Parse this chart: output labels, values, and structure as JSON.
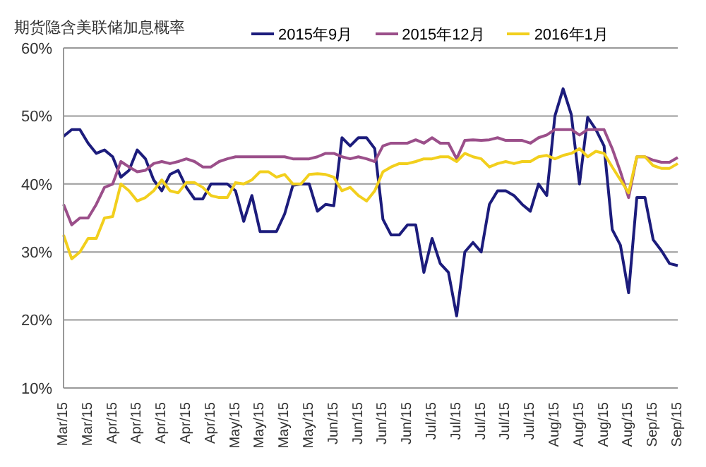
{
  "chart_data": {
    "type": "line",
    "title": "期货隐含美联储加息概率",
    "categories": [
      "Mar/15",
      null,
      null,
      "Mar/15",
      null,
      null,
      "Apr/15",
      null,
      null,
      "Apr/15",
      null,
      null,
      "Apr/15",
      null,
      null,
      "Apr/15",
      null,
      null,
      "Apr/15",
      null,
      null,
      "May/15",
      null,
      null,
      "May/15",
      null,
      null,
      "May/15",
      null,
      null,
      "May/15",
      null,
      null,
      "Jun/15",
      null,
      null,
      "Jun/15",
      null,
      null,
      "Jun/15",
      null,
      null,
      "Jun/15",
      null,
      null,
      "Jul/15",
      null,
      null,
      "Jul/15",
      null,
      null,
      "Jul/15",
      null,
      null,
      "Jul/15",
      null,
      null,
      "Jul/15",
      null,
      null,
      "Aug/15",
      null,
      null,
      "Aug/15",
      null,
      null,
      "Aug/15",
      null,
      null,
      "Aug/15",
      null,
      null,
      "Sep/15",
      null,
      null,
      "Sep/15"
    ],
    "series": [
      {
        "name": "2015年9月",
        "color": "#1c1c7c",
        "values": [
          47,
          48,
          48,
          46,
          44.5,
          45,
          44,
          41,
          42,
          45,
          43.7,
          40.6,
          39,
          41.4,
          42,
          39.5,
          37.8,
          37.8,
          40,
          40,
          40,
          39,
          34.5,
          38.3,
          33,
          33,
          33,
          35.6,
          39.8,
          40,
          40,
          36,
          37,
          36.8,
          46.8,
          45.6,
          46.8,
          46.8,
          45.2,
          34.8,
          32.5,
          32.5,
          34,
          34,
          27,
          32,
          28.3,
          27,
          20.6,
          30,
          31.4,
          30,
          37,
          39,
          39,
          38.3,
          37,
          36,
          40,
          38.3,
          50,
          54,
          50.2,
          40,
          49.8,
          48,
          45.6,
          33.3,
          31,
          24,
          38,
          38,
          31.8,
          30.2,
          28.3,
          28
        ]
      },
      {
        "name": "2015年12月",
        "color": "#9b4f8a",
        "values": [
          37,
          34,
          35,
          35,
          37,
          39.5,
          40,
          43.3,
          42.5,
          41.8,
          42,
          43,
          43.3,
          43,
          43.3,
          43.7,
          43.3,
          42.5,
          42.5,
          43.3,
          43.7,
          44,
          44,
          44,
          44,
          44,
          44,
          44,
          43.7,
          43.7,
          43.7,
          44,
          44.5,
          44.5,
          44,
          43.7,
          44,
          43.7,
          43.3,
          45.6,
          46,
          46,
          46,
          46.5,
          46,
          46.8,
          46,
          46,
          43.7,
          46.4,
          46.5,
          46.4,
          46.5,
          46.8,
          46.4,
          46.4,
          46.4,
          46,
          46.8,
          47.2,
          48,
          48,
          48,
          47.2,
          48,
          48,
          48,
          45.2,
          41.8,
          38,
          44,
          44,
          43.5,
          43.2,
          43.2,
          43.9
        ]
      },
      {
        "name": "2016年1月",
        "color": "#f2cf1d",
        "values": [
          32.5,
          29,
          30,
          32,
          32,
          35,
          35.2,
          40,
          39,
          37.5,
          38,
          39,
          40.6,
          39,
          38.7,
          40.2,
          40.2,
          39.5,
          38.3,
          38,
          38,
          40.2,
          40,
          40.6,
          41.8,
          41.8,
          41,
          41.4,
          40,
          40,
          41.4,
          41.5,
          41.4,
          41,
          39,
          39.5,
          38.3,
          37.5,
          39,
          41.8,
          42.5,
          43,
          43,
          43.3,
          43.7,
          43.7,
          44,
          44,
          43.3,
          44.5,
          44,
          43.7,
          42.5,
          43,
          43.3,
          43,
          43.3,
          43.3,
          44,
          44.2,
          43.7,
          44.2,
          44.5,
          45.2,
          44,
          44.8,
          44.5,
          42.5,
          40.6,
          38.7,
          44,
          44,
          42.7,
          42.3,
          42.3,
          43
        ]
      }
    ],
    "ylim": [
      10,
      60
    ],
    "yticks": [
      {
        "value": 10,
        "label": "10%"
      },
      {
        "value": 20,
        "label": "20%"
      },
      {
        "value": 30,
        "label": "30%"
      },
      {
        "value": 40,
        "label": "40%"
      },
      {
        "value": 50,
        "label": "50%"
      },
      {
        "value": 60,
        "label": "60%"
      }
    ],
    "grid": "y",
    "legend": "top",
    "marker": "none",
    "line_style": "solid"
  }
}
